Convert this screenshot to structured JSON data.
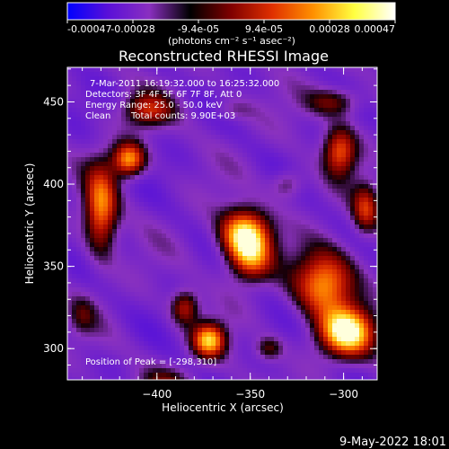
{
  "colorbar": {
    "ticks": [
      "-0.00047",
      "-0.00028",
      "-9.4e-05",
      "9.4e-05",
      "0.00028",
      "0.00047"
    ],
    "units": "(photons cm⁻² s⁻¹ asec⁻²)",
    "colors": [
      "#0000ff",
      "#5a10d8",
      "#8a2fc0",
      "#000000",
      "#800000",
      "#e03000",
      "#ff9000",
      "#ffff40",
      "#ffffff"
    ]
  },
  "chart_data": {
    "type": "heatmap",
    "title": "Reconstructed RHESSI Image",
    "xlabel": "Heliocentric X (arcsec)",
    "ylabel": "Heliocentric Y (arcsec)",
    "xlim": [
      -448,
      -282
    ],
    "ylim": [
      281,
      471
    ],
    "xticks": [
      -400,
      -350,
      -300
    ],
    "yticks": [
      300,
      350,
      400,
      450
    ],
    "xtick_labels": [
      "−400",
      "−350",
      "−300"
    ],
    "ytick_labels": [
      "300",
      "350",
      "400",
      "450"
    ],
    "peak": [
      -298,
      310
    ],
    "sources": [
      {
        "x": -298,
        "y": 310,
        "sx": 10,
        "sy": 10,
        "a": 1.0
      },
      {
        "x": -310,
        "y": 340,
        "sx": 11,
        "sy": 14,
        "a": 0.75
      },
      {
        "x": -353,
        "y": 370,
        "sx": 9,
        "sy": 10,
        "a": 0.9
      },
      {
        "x": -350,
        "y": 355,
        "sx": 8,
        "sy": 10,
        "a": 0.6
      },
      {
        "x": -372,
        "y": 305,
        "sx": 6,
        "sy": 7,
        "a": 0.8
      },
      {
        "x": -385,
        "y": 325,
        "sx": 5,
        "sy": 7,
        "a": 0.45
      },
      {
        "x": -430,
        "y": 385,
        "sx": 6,
        "sy": 18,
        "a": 0.7
      },
      {
        "x": -415,
        "y": 415,
        "sx": 6,
        "sy": 7,
        "a": 0.75
      },
      {
        "x": -405,
        "y": 445,
        "sx": 9,
        "sy": 7,
        "a": 0.45
      },
      {
        "x": -302,
        "y": 420,
        "sx": 6,
        "sy": 10,
        "a": 0.6
      },
      {
        "x": -288,
        "y": 385,
        "sx": 5,
        "sy": 10,
        "a": 0.5
      },
      {
        "x": -305,
        "y": 450,
        "sx": 10,
        "sy": 6,
        "a": 0.35
      },
      {
        "x": -330,
        "y": 400,
        "sx": 6,
        "sy": 6,
        "a": 0.25
      },
      {
        "x": -440,
        "y": 320,
        "sx": 5,
        "sy": 8,
        "a": 0.2
      },
      {
        "x": -360,
        "y": 445,
        "sx": 8,
        "sy": 5,
        "a": 0.15
      },
      {
        "x": -395,
        "y": 280,
        "sx": 10,
        "sy": 6,
        "a": 0.25
      },
      {
        "x": -340,
        "y": 300,
        "sx": 5,
        "sy": 5,
        "a": 0.3
      }
    ]
  },
  "info": {
    "line1": "7-Mar-2011 16:19:32.000 to 16:25:32.000",
    "line2": "Detectors: 3F 4F 5F 6F 7F 8F, Att 0",
    "line3": "Energy Range: 25.0 - 50.0 keV",
    "line4_a": "Clean",
    "line4_b": "Total counts: 9.90E+03"
  },
  "peak_label": "Position of Peak = [-298,310]",
  "timestamp": "9-May-2022 18:01"
}
